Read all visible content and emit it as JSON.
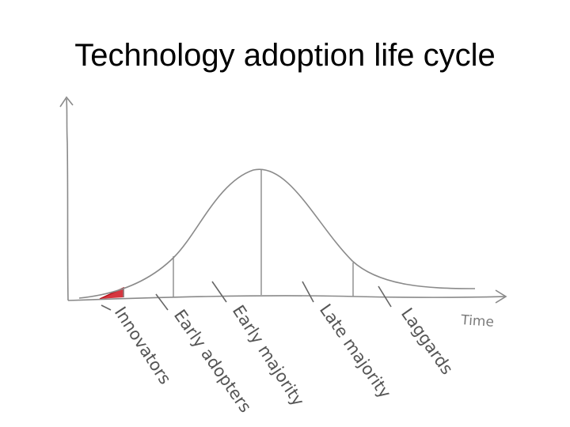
{
  "slide": {
    "title": "Technology adoption life cycle"
  },
  "diagram": {
    "x_axis_label": "Time",
    "segments": [
      {
        "label": "Innovators",
        "highlighted": true
      },
      {
        "label": "Early adopters",
        "highlighted": false
      },
      {
        "label": "Early majority",
        "highlighted": false
      },
      {
        "label": "Late majority",
        "highlighted": false
      },
      {
        "label": "Laggards",
        "highlighted": false
      }
    ],
    "colors": {
      "line": "#8a8a8a",
      "highlight": "#d0202a",
      "text": "#555555"
    }
  }
}
